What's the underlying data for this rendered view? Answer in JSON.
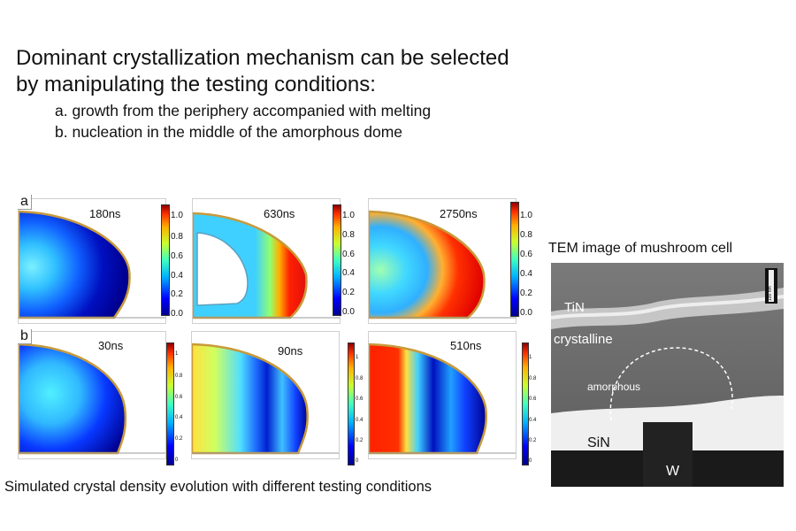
{
  "heading": {
    "line1": "Dominant crystallization mechanism can be selected",
    "line2": "by manipulating the testing conditions:",
    "item_a": "a. growth from the periphery accompanied with melting",
    "item_b": "b. nucleation in the middle of the amorphous dome"
  },
  "rows": [
    {
      "label": "a",
      "panels": [
        {
          "time": "180ns",
          "colorbar_ticks": [
            "1.0",
            "0.8",
            "0.6",
            "0.4",
            "0.2",
            "0.0"
          ]
        },
        {
          "time": "630ns",
          "colorbar_ticks": [
            "1.0",
            "0.8",
            "0.6",
            "0.4",
            "0.2",
            "0.0"
          ]
        },
        {
          "time": "2750ns",
          "colorbar_ticks": [
            "1.0",
            "0.8",
            "0.6",
            "0.4",
            "0.2",
            "0.0"
          ]
        }
      ]
    },
    {
      "label": "b",
      "panels": [
        {
          "time": "30ns",
          "colorbar_ticks": [
            "1",
            "0.8",
            "0.6",
            "0.4",
            "0.2",
            "0"
          ]
        },
        {
          "time": "90ns",
          "colorbar_ticks": [
            "1",
            "0.8",
            "0.6",
            "0.4",
            "0.2",
            "0"
          ]
        },
        {
          "time": "510ns",
          "colorbar_ticks": [
            "1",
            "0.8",
            "0.6",
            "0.4",
            "0.2",
            "0"
          ]
        }
      ]
    }
  ],
  "caption": "Simulated crystal density evolution with different testing conditions",
  "tem": {
    "title": "TEM image of mushroom cell",
    "scale_bar": "100 nm",
    "labels": {
      "tin": "TiN",
      "crystalline": "crystalline",
      "amorphous": "amorphous",
      "sin": "SiN",
      "w": "W"
    }
  },
  "colors": {
    "jet_low": "#00008f",
    "jet_mid": "#33c8ff",
    "jet_high": "#e01010",
    "dome_outline": "#c89a3a",
    "tem_background": "#6d6d6d"
  }
}
